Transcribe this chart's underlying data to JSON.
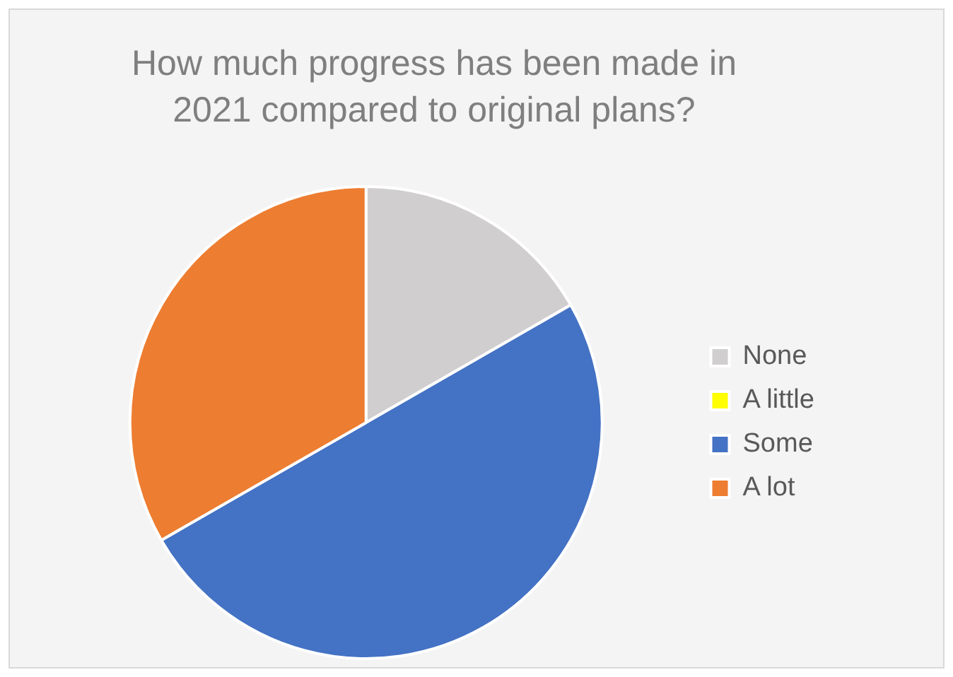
{
  "chart_data": {
    "type": "pie",
    "title": "How much progress has been made in 2021 compared to original plans?",
    "categories": [
      "None",
      "A little",
      "Some",
      "A lot"
    ],
    "values": [
      16.7,
      0,
      50,
      33.3
    ],
    "colors": [
      "#d0cece",
      "#ffff00",
      "#4472c4",
      "#ed7d31"
    ],
    "legend": "right"
  }
}
